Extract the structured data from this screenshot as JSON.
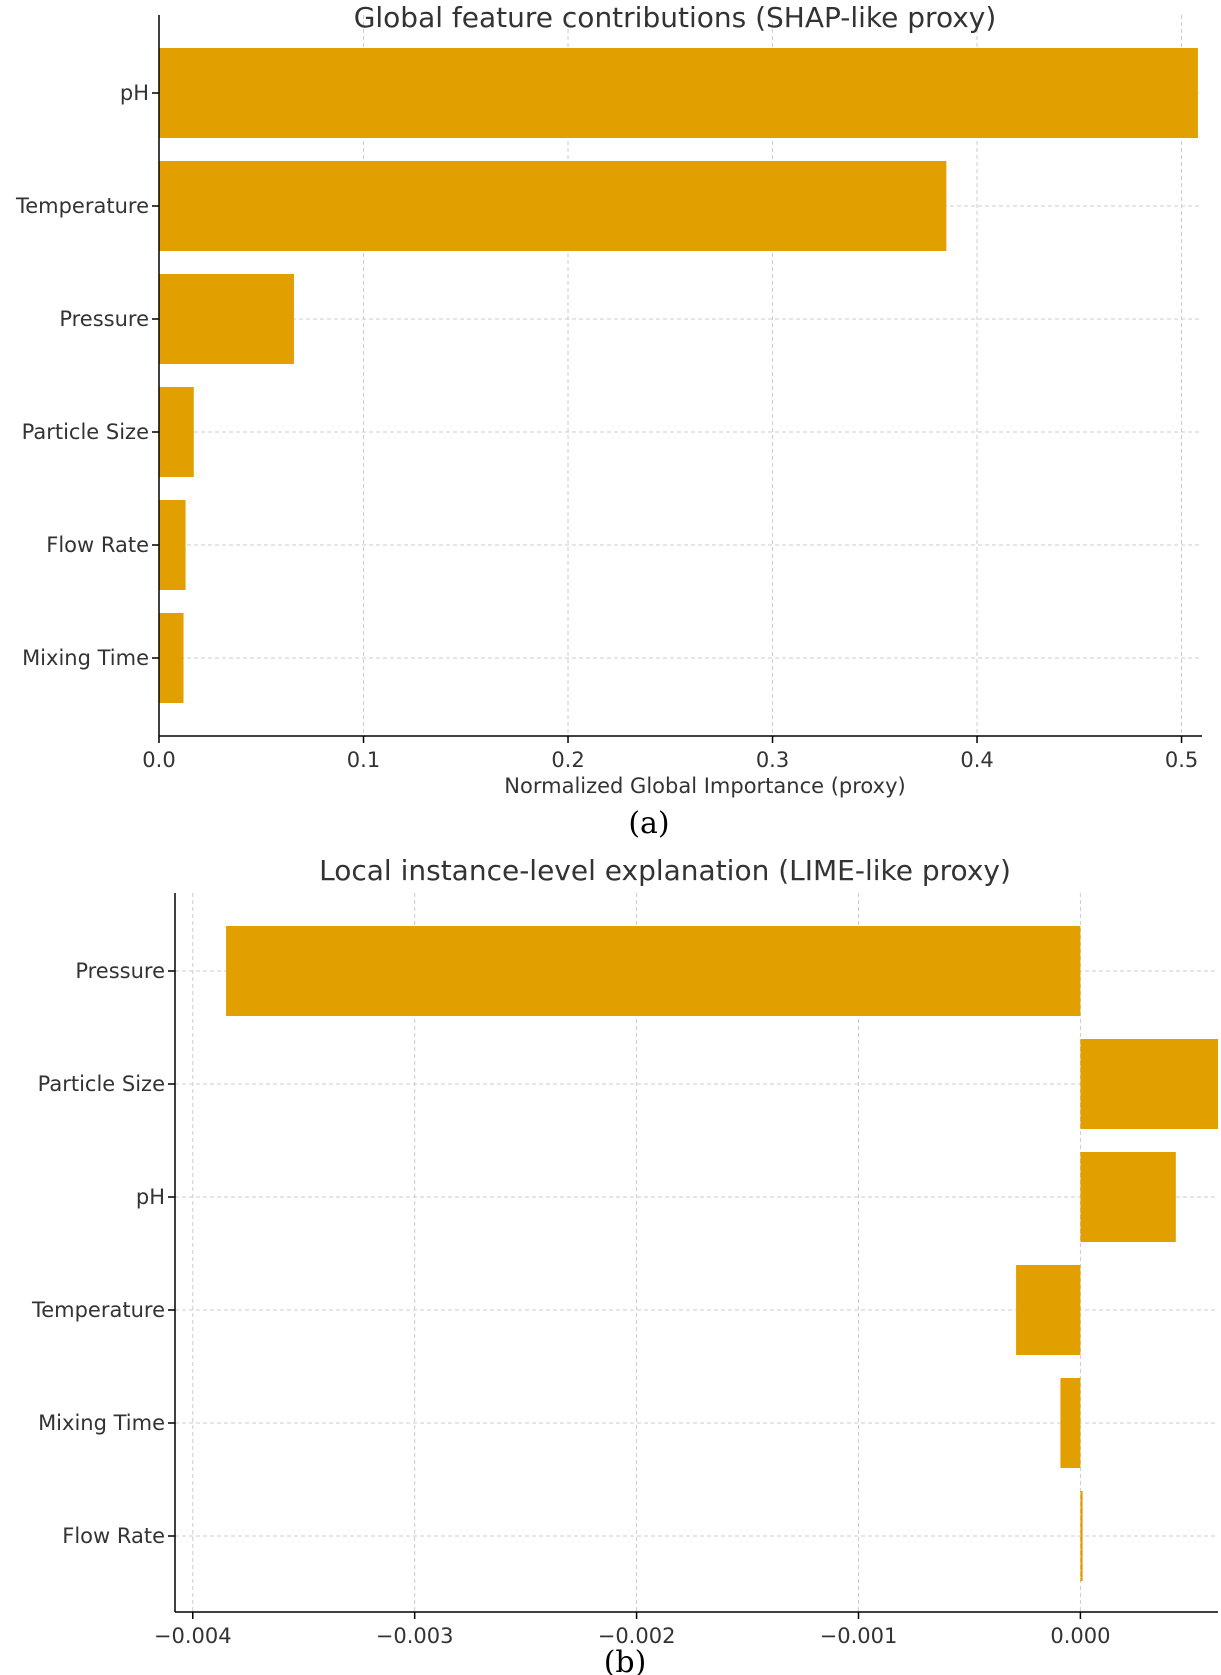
{
  "chart_data": [
    {
      "type": "bar",
      "orientation": "horizontal",
      "title": "Global feature contributions (SHAP-like proxy)",
      "xlabel": "Normalized Global Importance (proxy)",
      "ylabel": "",
      "panel_label": "(a)",
      "categories": [
        "pH",
        "Temperature",
        "Pressure",
        "Particle Size",
        "Flow Rate",
        "Mixing Time"
      ],
      "values": [
        0.508,
        0.385,
        0.066,
        0.017,
        0.013,
        0.012
      ],
      "xlim": [
        0.0,
        0.51
      ],
      "xticks": [
        0.0,
        0.1,
        0.2,
        0.3,
        0.4,
        0.5
      ],
      "xtick_labels": [
        "0.0",
        "0.1",
        "0.2",
        "0.3",
        "0.4",
        "0.5"
      ],
      "bar_color": "#e2a000",
      "grid": true,
      "legend": "none"
    },
    {
      "type": "bar",
      "orientation": "horizontal",
      "title": "Local instance-level explanation (LIME-like proxy)",
      "xlabel": "",
      "ylabel": "",
      "panel_label": "(b)",
      "categories": [
        "Pressure",
        "Particle Size",
        "pH",
        "Temperature",
        "Mixing Time",
        "Flow Rate"
      ],
      "values": [
        -0.00385,
        0.00062,
        0.00043,
        -0.00029,
        -9e-05,
        1e-05
      ],
      "xlim": [
        -0.00408,
        0.00062
      ],
      "xticks": [
        -0.004,
        -0.003,
        -0.002,
        -0.001,
        0.0
      ],
      "xtick_labels": [
        "−0.004",
        "−0.003",
        "−0.002",
        "−0.001",
        "0.000"
      ],
      "bar_color": "#e2a000",
      "grid": true,
      "legend": "none"
    }
  ]
}
